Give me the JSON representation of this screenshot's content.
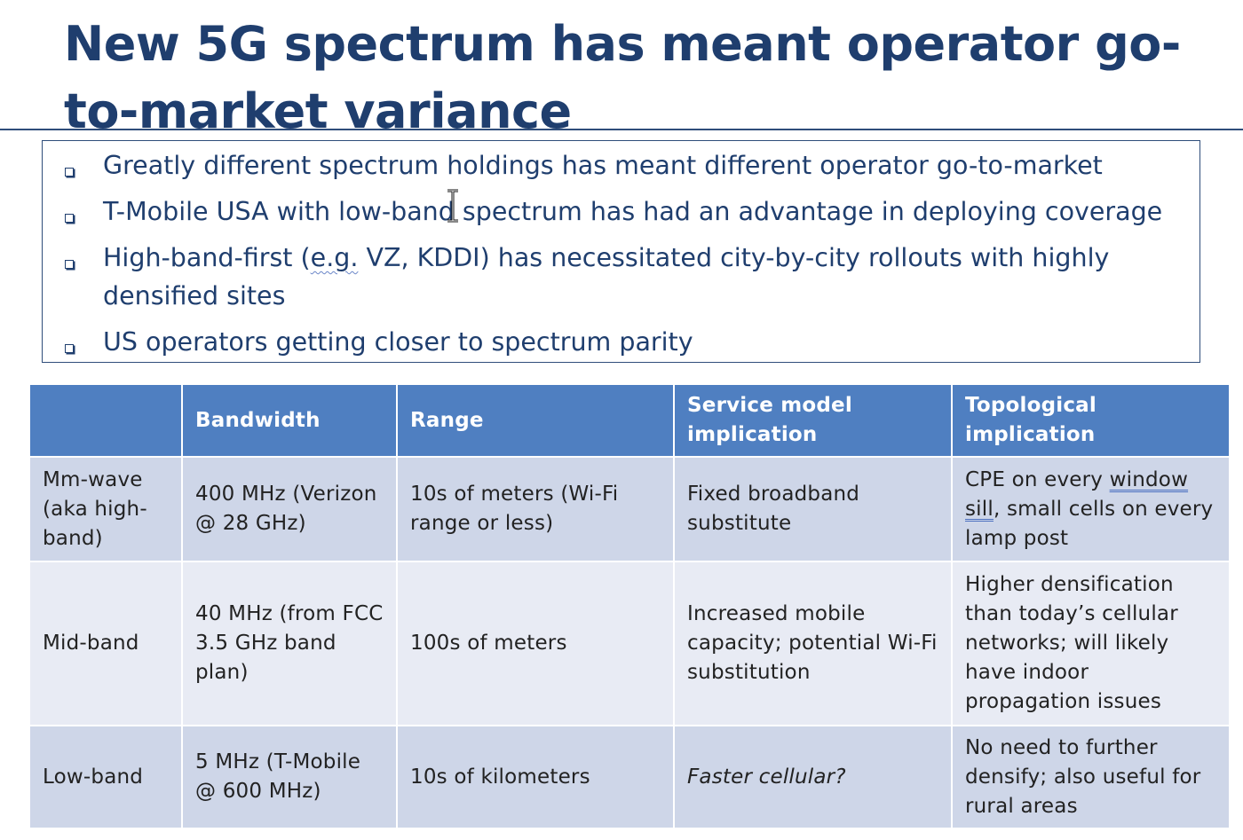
{
  "slide": {
    "title": "New 5G spectrum has meant operator go-to-market variance"
  },
  "bullets": [
    "Greatly different spectrum holdings has meant different operator go-to-market",
    "T-Mobile USA with low-band spectrum has had an advantage in deploying coverage",
    {
      "pre": "High-band-first (",
      "underlined": "e.g.",
      "post": " VZ, KDDI)  has necessitated city-by-city rollouts with highly densified sites"
    },
    "US operators getting closer to spectrum parity"
  ],
  "table": {
    "headers": [
      "",
      "Bandwidth",
      "Range",
      "Service model implication",
      "Topological implication"
    ],
    "rows": [
      {
        "band": "Mm-wave (aka high-band)",
        "bandwidth": "400 MHz (Verizon @ 28 GHz)",
        "range": "10s of meters (Wi-Fi range or less)",
        "service": "Fixed broadband substitute",
        "topo_pre": "CPE on every ",
        "topo_ul1": "window",
        "topo_mid": " ",
        "topo_ul2": "sill",
        "topo_post": ", small cells on every lamp post"
      },
      {
        "band": "Mid-band",
        "bandwidth": "40 MHz (from FCC 3.5 GHz band plan)",
        "range": "100s of meters",
        "service": "Increased mobile capacity; potential Wi-Fi substitution",
        "topo": "Higher densification than today’s cellular networks; will likely have indoor propagation issues"
      },
      {
        "band": "Low-band",
        "bandwidth": "5 MHz (T-Mobile @ 600 MHz)",
        "range": "10s of kilometers",
        "service": "Faster cellular?",
        "topo": "No need to further densify; also useful for rural areas"
      }
    ]
  },
  "colors": {
    "title": "#1f3e6e",
    "header_bg": "#4f7fc1",
    "row_dark": "#ced6e8",
    "row_light": "#e8ebf4"
  },
  "icons": {
    "bullet": "square-bullet-icon",
    "cursor": "text-cursor-icon"
  }
}
